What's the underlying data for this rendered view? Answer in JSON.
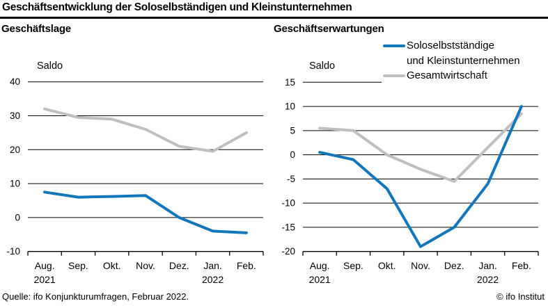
{
  "header": {
    "title": "Geschäftsentwicklung der Soloselbständigen und Kleinstunternehmen"
  },
  "legend": {
    "position": "top-right",
    "items": [
      {
        "label_line1": "Soloselbstständige",
        "label_line2": "und Kleinstunternehmen",
        "color": "#1276bb"
      },
      {
        "label": "Gesamtwirtschaft",
        "color": "#bfbfbf"
      }
    ]
  },
  "footer": {
    "source": "Quelle: ifo Konjunkturumfragen, Februar 2022.",
    "copyright": "© ifo Institut"
  },
  "chart_data": [
    {
      "type": "line",
      "title": "Geschäftslage",
      "ylabel": "Saldo",
      "categories": [
        "Aug.",
        "Sep.",
        "Okt.",
        "Nov.",
        "Dez.",
        "Jan.",
        "Feb."
      ],
      "year_labels": [
        {
          "col": 0,
          "label": "2021"
        },
        {
          "col": 5,
          "label": "2022"
        }
      ],
      "ylim": [
        -10,
        40
      ],
      "yticks": [
        40,
        30,
        20,
        10,
        0,
        -10
      ],
      "grid": true,
      "series": [
        {
          "name": "Soloselbstständige und Kleinstunternehmen",
          "color": "#1276bb",
          "values": [
            7.5,
            6.0,
            6.2,
            6.5,
            0.0,
            -4.0,
            -4.5
          ]
        },
        {
          "name": "Gesamtwirtschaft",
          "color": "#bfbfbf",
          "values": [
            32.0,
            29.5,
            29.0,
            26.0,
            21.0,
            19.5,
            25.0
          ]
        }
      ]
    },
    {
      "type": "line",
      "title": "Geschäftserwartungen",
      "ylabel": "Saldo",
      "categories": [
        "Aug.",
        "Sep.",
        "Okt.",
        "Nov.",
        "Dez.",
        "Jan.",
        "Feb."
      ],
      "year_labels": [
        {
          "col": 0,
          "label": "2021"
        },
        {
          "col": 5,
          "label": "2022"
        }
      ],
      "ylim": [
        -20,
        15
      ],
      "yticks": [
        15,
        10,
        5,
        0,
        -5,
        -10,
        -15,
        -20
      ],
      "grid": true,
      "series": [
        {
          "name": "Soloselbstständige und Kleinstunternehmen",
          "color": "#1276bb",
          "values": [
            0.5,
            -1.0,
            -7.0,
            -19.0,
            -15.0,
            -6.0,
            10.0
          ]
        },
        {
          "name": "Gesamtwirtschaft",
          "color": "#bfbfbf",
          "values": [
            5.5,
            5.0,
            0.0,
            -3.0,
            -5.5,
            1.5,
            8.5
          ]
        }
      ]
    }
  ]
}
